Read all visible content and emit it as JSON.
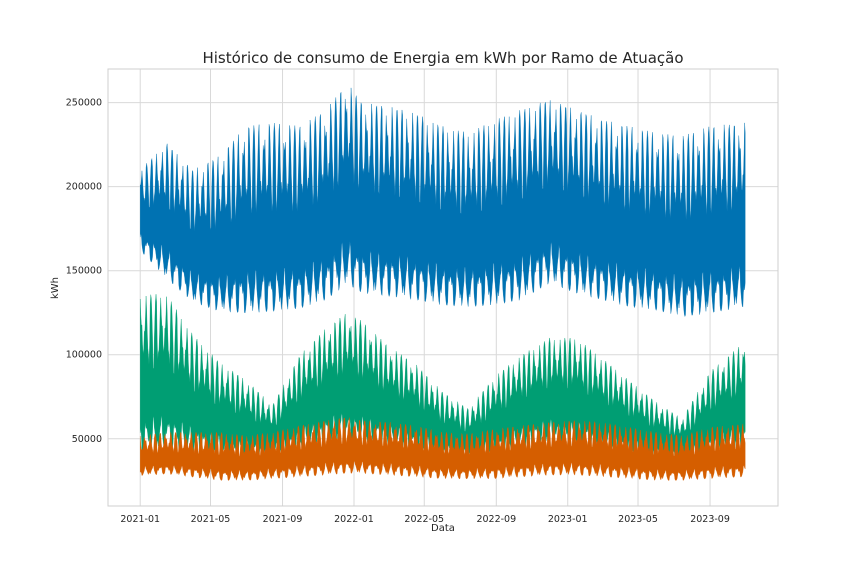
{
  "chart_data": {
    "type": "area",
    "title": "Histórico de consumo de Energia em kWh por Ramo de Atuação",
    "xlabel": "Data",
    "ylabel": "kWh",
    "grid": true,
    "x_ticks": [
      "2021-01",
      "2021-05",
      "2021-09",
      "2022-01",
      "2022-05",
      "2022-09",
      "2023-01",
      "2023-05",
      "2023-09"
    ],
    "y_ticks": [
      50000,
      100000,
      150000,
      200000,
      250000
    ],
    "xlim": [
      "2020-11-07",
      "2023-12-26"
    ],
    "ylim": [
      10000,
      270000
    ],
    "colors": {
      "blue": "#0072b2",
      "green": "#009e73",
      "orange": "#d55e00"
    },
    "series": [
      {
        "color": "#0072b2",
        "x": [
          "2021-01-01",
          "2021-02-15",
          "2021-04-01",
          "2021-05-15",
          "2021-07-01",
          "2021-08-15",
          "2021-10-01",
          "2021-11-15",
          "2021-12-20",
          "2022-01-15",
          "2022-03-01",
          "2022-04-15",
          "2022-06-01",
          "2022-07-15",
          "2022-09-01",
          "2022-10-15",
          "2022-12-01",
          "2023-01-15",
          "2023-03-01",
          "2023-04-15",
          "2023-06-01",
          "2023-07-15",
          "2023-09-01",
          "2023-10-31"
        ],
        "low": [
          160000,
          142000,
          128000,
          122000,
          120000,
          121000,
          123000,
          128000,
          137000,
          132000,
          130000,
          128000,
          125000,
          124000,
          125000,
          128000,
          138000,
          132000,
          128000,
          124000,
          122000,
          118000,
          120000,
          124000
        ],
        "high": [
          210000,
          226000,
          210000,
          218000,
          236000,
          238000,
          236000,
          246000,
          262000,
          250000,
          248000,
          244000,
          236000,
          232000,
          240000,
          246000,
          252000,
          246000,
          240000,
          236000,
          232000,
          230000,
          236000,
          238000
        ]
      },
      {
        "color": "#009e73",
        "x": [
          "2021-01-01",
          "2021-02-15",
          "2021-04-01",
          "2021-05-15",
          "2021-07-01",
          "2021-08-15",
          "2021-10-01",
          "2021-11-15",
          "2021-12-20",
          "2022-01-15",
          "2022-03-01",
          "2022-04-15",
          "2022-06-01",
          "2022-07-15",
          "2022-09-01",
          "2022-10-15",
          "2022-12-01",
          "2023-01-15",
          "2023-03-01",
          "2023-04-15",
          "2023-06-01",
          "2023-07-15",
          "2023-09-01",
          "2023-10-31"
        ],
        "low": [
          36000,
          40000,
          38000,
          37000,
          36000,
          38000,
          41000,
          44000,
          46000,
          44000,
          42000,
          40000,
          37000,
          36000,
          38000,
          42000,
          45000,
          43000,
          40000,
          38000,
          36000,
          35000,
          38000,
          41000
        ],
        "high": [
          136000,
          136000,
          112000,
          96000,
          85000,
          70000,
          100000,
          116000,
          125000,
          120000,
          105000,
          95000,
          78000,
          68000,
          88000,
          100000,
          110000,
          110000,
          98000,
          85000,
          72000,
          62000,
          90000,
          108000
        ]
      },
      {
        "color": "#d55e00",
        "x": [
          "2021-01-01",
          "2021-02-15",
          "2021-04-01",
          "2021-05-15",
          "2021-07-01",
          "2021-08-15",
          "2021-10-01",
          "2021-11-15",
          "2021-12-20",
          "2022-01-15",
          "2022-03-01",
          "2022-04-15",
          "2022-06-01",
          "2022-07-15",
          "2022-09-01",
          "2022-10-15",
          "2022-12-01",
          "2023-01-15",
          "2023-03-01",
          "2023-04-15",
          "2023-06-01",
          "2023-07-15",
          "2023-09-01",
          "2023-10-31"
        ],
        "low": [
          27000,
          28000,
          26000,
          24000,
          24000,
          25000,
          26000,
          27000,
          28000,
          28000,
          27000,
          26000,
          25000,
          25000,
          25000,
          26000,
          27000,
          27000,
          26000,
          25000,
          24000,
          24000,
          25000,
          26000
        ],
        "high": [
          52000,
          54000,
          54000,
          54000,
          52000,
          54000,
          58000,
          61000,
          63000,
          61000,
          60000,
          58000,
          54000,
          53000,
          56000,
          58000,
          60000,
          61000,
          60000,
          57000,
          54000,
          52000,
          57000,
          59000
        ]
      }
    ]
  }
}
